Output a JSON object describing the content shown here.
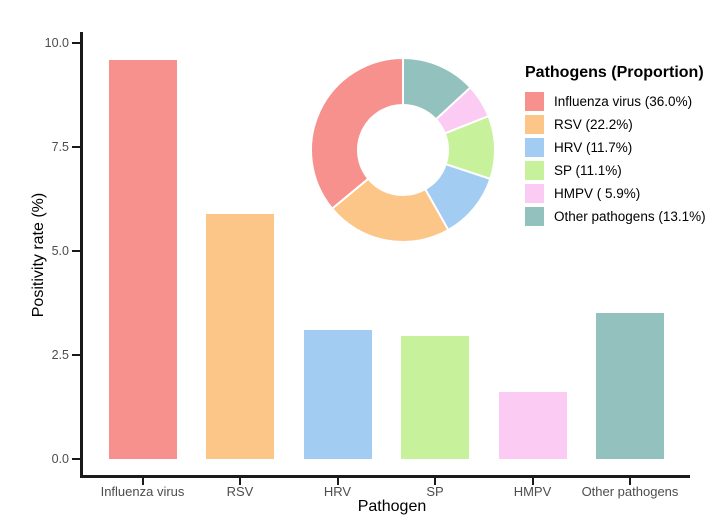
{
  "chart_data": [
    {
      "type": "bar",
      "title": "",
      "xlabel": "Pathogen",
      "ylabel": "Positivity rate (%)",
      "categories": [
        "Influenza virus",
        "RSV",
        "HRV",
        "SP",
        "HMPV",
        "Other pathogens"
      ],
      "values": [
        9.6,
        5.9,
        3.1,
        2.95,
        1.6,
        3.5
      ],
      "bar_colors": [
        "#F7918E",
        "#FCC688",
        "#A3CCF3",
        "#C8F19B",
        "#FBCBF3",
        "#93C1BD"
      ],
      "ylim": [
        0,
        10.0
      ],
      "ytick_values": [
        0.0,
        2.5,
        5.0,
        7.5,
        10.0
      ],
      "ytick_labels": [
        "0.0",
        "2.5",
        "5.0",
        "7.5",
        "10.0"
      ],
      "grid": false,
      "legend_position": "none",
      "axis_color": "#1a1a1a",
      "tick_text_color": "#4d4d4d"
    },
    {
      "type": "pie",
      "subtype": "donut",
      "direction": "counterclockwise-from-top",
      "legend_title": "Pathogens (Proportion)",
      "legend_position": "right",
      "slice_border_color": "#FFFFFF",
      "slices": [
        {
          "name": "influenza-virus",
          "label": "Influenza virus (36.0%)",
          "value": 36.0,
          "color": "#F7918E"
        },
        {
          "name": "rsv",
          "label": "RSV (22.2%)",
          "value": 22.2,
          "color": "#FCC688"
        },
        {
          "name": "hrv",
          "label": "HRV (11.7%)",
          "value": 11.7,
          "color": "#A3CCF3"
        },
        {
          "name": "sp",
          "label": "SP (11.1%)",
          "value": 11.1,
          "color": "#C8F19B"
        },
        {
          "name": "hmpv",
          "label": "HMPV ( 5.9%)",
          "value": 5.9,
          "color": "#FBCBF3"
        },
        {
          "name": "other-pathogens",
          "label": "Other pathogens (13.1%)",
          "value": 13.1,
          "color": "#93C1BD"
        }
      ]
    }
  ]
}
